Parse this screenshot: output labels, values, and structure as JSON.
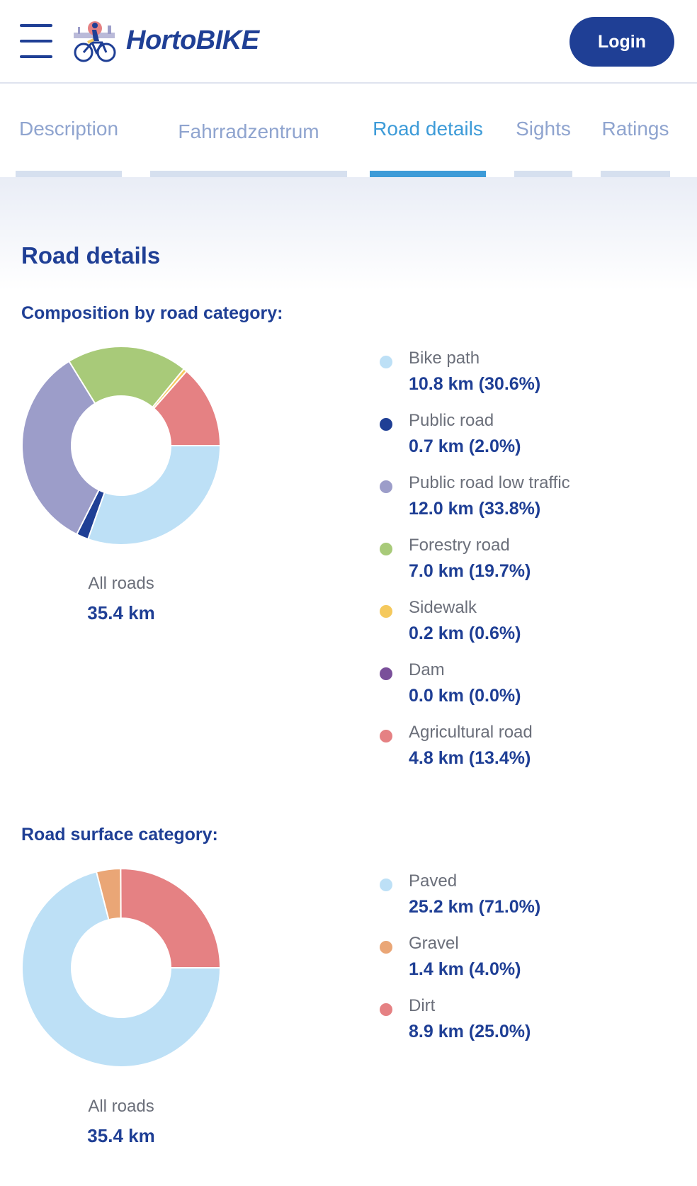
{
  "header": {
    "logo_text": "HortoBIKE",
    "login_label": "Login"
  },
  "tabs": [
    {
      "label": "Description",
      "active": false
    },
    {
      "label": "Fahrradzentrum",
      "active": false
    },
    {
      "label": "Road details",
      "active": true
    },
    {
      "label": "Sights",
      "active": false
    },
    {
      "label": "Ratings",
      "active": false
    }
  ],
  "main": {
    "title": "Road details"
  },
  "chart_data": [
    {
      "type": "pie",
      "title": "Composition by road category:",
      "total_label": "All roads",
      "total_value": "35.4 km",
      "series": [
        {
          "name": "Bike path",
          "value": 10.8,
          "percent": 30.6,
          "display": "10.8 km (30.6%)",
          "color": "#bde0f6"
        },
        {
          "name": "Public road",
          "value": 0.7,
          "percent": 2.0,
          "display": "0.7 km (2.0%)",
          "color": "#1f3f95"
        },
        {
          "name": "Public road low traffic",
          "value": 12.0,
          "percent": 33.8,
          "display": "12.0 km (33.8%)",
          "color": "#9c9dc9"
        },
        {
          "name": "Forestry road",
          "value": 7.0,
          "percent": 19.7,
          "display": "7.0 km (19.7%)",
          "color": "#a8ca79"
        },
        {
          "name": "Sidewalk",
          "value": 0.2,
          "percent": 0.6,
          "display": "0.2 km (0.6%)",
          "color": "#f5c95d"
        },
        {
          "name": "Dam",
          "value": 0.0,
          "percent": 0.0,
          "display": "0.0 km (0.0%)",
          "color": "#7a4f9a"
        },
        {
          "name": "Agricultural road",
          "value": 4.8,
          "percent": 13.4,
          "display": "4.8 km (13.4%)",
          "color": "#e58183"
        }
      ]
    },
    {
      "type": "pie",
      "title": "Road surface category:",
      "total_label": "All roads",
      "total_value": "35.4 km",
      "series": [
        {
          "name": "Paved",
          "value": 25.2,
          "percent": 71.0,
          "display": "25.2 km (71.0%)",
          "color": "#bde0f6"
        },
        {
          "name": "Gravel",
          "value": 1.4,
          "percent": 4.0,
          "display": "1.4 km (4.0%)",
          "color": "#eaa676"
        },
        {
          "name": "Dirt",
          "value": 8.9,
          "percent": 25.0,
          "display": "8.9 km (25.0%)",
          "color": "#e58183"
        }
      ]
    }
  ]
}
